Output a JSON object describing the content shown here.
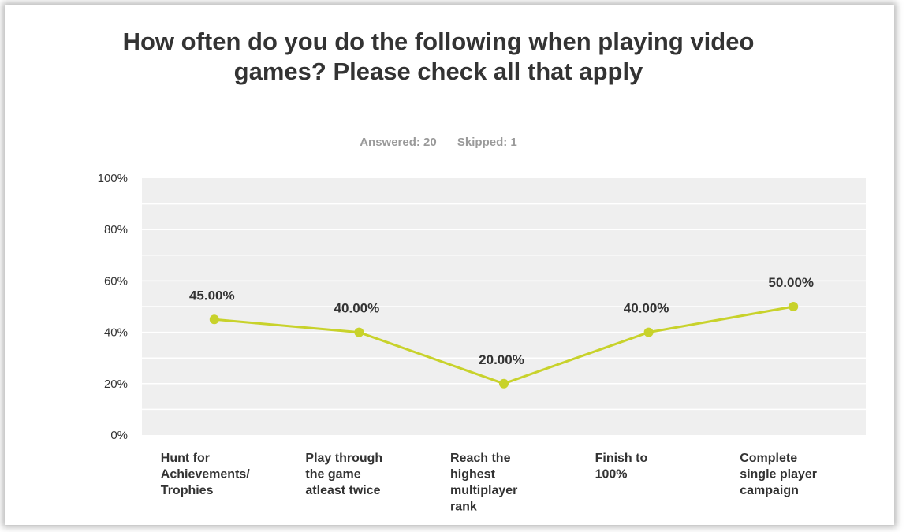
{
  "header": {
    "title": "How often do you do the following when playing video games? Please check all that apply",
    "answered": "Answered: 20",
    "skipped": "Skipped: 1"
  },
  "colors": {
    "plot_bg": "#efefef",
    "gridline": "#ffffff",
    "line": "#c8d22b",
    "text": "#333333",
    "meta": "#9a9a9a"
  },
  "chart_data": {
    "type": "line",
    "title": "How often do you do the following when playing video games? Please check all that apply",
    "categories": [
      [
        "Hunt for",
        "Achievements/",
        "Trophies"
      ],
      [
        "Play through",
        "the game",
        "atleast twice"
      ],
      [
        "Reach the",
        "highest",
        "multiplayer",
        "rank"
      ],
      [
        "Finish to",
        "100%"
      ],
      [
        "Complete",
        "single player",
        "campaign"
      ]
    ],
    "values": [
      45,
      40,
      20,
      40,
      50
    ],
    "data_labels": [
      "45.00%",
      "40.00%",
      "20.00%",
      "40.00%",
      "50.00%"
    ],
    "ylim": [
      0,
      100
    ],
    "yticks": [
      "0%",
      "20%",
      "40%",
      "60%",
      "80%",
      "100%"
    ],
    "grid": true,
    "legend": "none"
  }
}
